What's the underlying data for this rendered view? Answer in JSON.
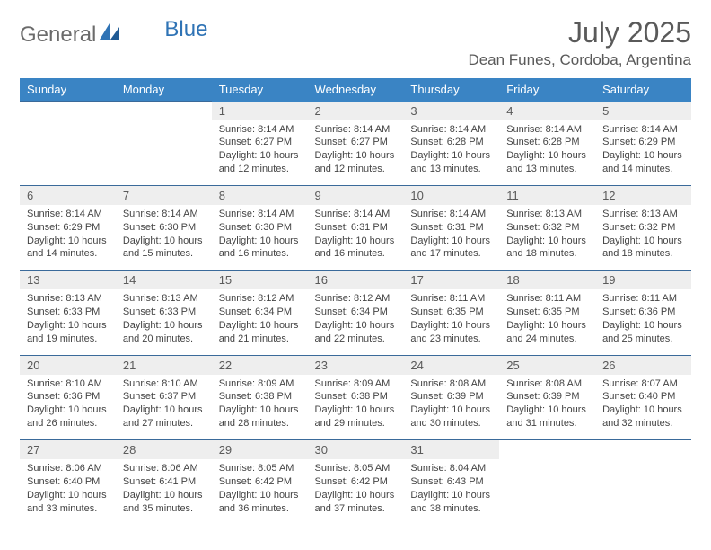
{
  "brand": {
    "name_part1": "General",
    "name_part2": "Blue"
  },
  "title": "July 2025",
  "location": "Dean Funes, Cordoba, Argentina",
  "colors": {
    "header_bg": "#3a84c4",
    "header_text": "#ffffff",
    "daynum_bg": "#eeeeee",
    "rule": "#3a6a9a",
    "text": "#444444",
    "title_text": "#5a5a5a",
    "logo_gray": "#6b6b6b",
    "logo_blue": "#2f73b5"
  },
  "day_headers": [
    "Sunday",
    "Monday",
    "Tuesday",
    "Wednesday",
    "Thursday",
    "Friday",
    "Saturday"
  ],
  "weeks": [
    [
      null,
      null,
      {
        "n": "1",
        "sr": "8:14 AM",
        "ss": "6:27 PM",
        "dl": "10 hours and 12 minutes."
      },
      {
        "n": "2",
        "sr": "8:14 AM",
        "ss": "6:27 PM",
        "dl": "10 hours and 12 minutes."
      },
      {
        "n": "3",
        "sr": "8:14 AM",
        "ss": "6:28 PM",
        "dl": "10 hours and 13 minutes."
      },
      {
        "n": "4",
        "sr": "8:14 AM",
        "ss": "6:28 PM",
        "dl": "10 hours and 13 minutes."
      },
      {
        "n": "5",
        "sr": "8:14 AM",
        "ss": "6:29 PM",
        "dl": "10 hours and 14 minutes."
      }
    ],
    [
      {
        "n": "6",
        "sr": "8:14 AM",
        "ss": "6:29 PM",
        "dl": "10 hours and 14 minutes."
      },
      {
        "n": "7",
        "sr": "8:14 AM",
        "ss": "6:30 PM",
        "dl": "10 hours and 15 minutes."
      },
      {
        "n": "8",
        "sr": "8:14 AM",
        "ss": "6:30 PM",
        "dl": "10 hours and 16 minutes."
      },
      {
        "n": "9",
        "sr": "8:14 AM",
        "ss": "6:31 PM",
        "dl": "10 hours and 16 minutes."
      },
      {
        "n": "10",
        "sr": "8:14 AM",
        "ss": "6:31 PM",
        "dl": "10 hours and 17 minutes."
      },
      {
        "n": "11",
        "sr": "8:13 AM",
        "ss": "6:32 PM",
        "dl": "10 hours and 18 minutes."
      },
      {
        "n": "12",
        "sr": "8:13 AM",
        "ss": "6:32 PM",
        "dl": "10 hours and 18 minutes."
      }
    ],
    [
      {
        "n": "13",
        "sr": "8:13 AM",
        "ss": "6:33 PM",
        "dl": "10 hours and 19 minutes."
      },
      {
        "n": "14",
        "sr": "8:13 AM",
        "ss": "6:33 PM",
        "dl": "10 hours and 20 minutes."
      },
      {
        "n": "15",
        "sr": "8:12 AM",
        "ss": "6:34 PM",
        "dl": "10 hours and 21 minutes."
      },
      {
        "n": "16",
        "sr": "8:12 AM",
        "ss": "6:34 PM",
        "dl": "10 hours and 22 minutes."
      },
      {
        "n": "17",
        "sr": "8:11 AM",
        "ss": "6:35 PM",
        "dl": "10 hours and 23 minutes."
      },
      {
        "n": "18",
        "sr": "8:11 AM",
        "ss": "6:35 PM",
        "dl": "10 hours and 24 minutes."
      },
      {
        "n": "19",
        "sr": "8:11 AM",
        "ss": "6:36 PM",
        "dl": "10 hours and 25 minutes."
      }
    ],
    [
      {
        "n": "20",
        "sr": "8:10 AM",
        "ss": "6:36 PM",
        "dl": "10 hours and 26 minutes."
      },
      {
        "n": "21",
        "sr": "8:10 AM",
        "ss": "6:37 PM",
        "dl": "10 hours and 27 minutes."
      },
      {
        "n": "22",
        "sr": "8:09 AM",
        "ss": "6:38 PM",
        "dl": "10 hours and 28 minutes."
      },
      {
        "n": "23",
        "sr": "8:09 AM",
        "ss": "6:38 PM",
        "dl": "10 hours and 29 minutes."
      },
      {
        "n": "24",
        "sr": "8:08 AM",
        "ss": "6:39 PM",
        "dl": "10 hours and 30 minutes."
      },
      {
        "n": "25",
        "sr": "8:08 AM",
        "ss": "6:39 PM",
        "dl": "10 hours and 31 minutes."
      },
      {
        "n": "26",
        "sr": "8:07 AM",
        "ss": "6:40 PM",
        "dl": "10 hours and 32 minutes."
      }
    ],
    [
      {
        "n": "27",
        "sr": "8:06 AM",
        "ss": "6:40 PM",
        "dl": "10 hours and 33 minutes."
      },
      {
        "n": "28",
        "sr": "8:06 AM",
        "ss": "6:41 PM",
        "dl": "10 hours and 35 minutes."
      },
      {
        "n": "29",
        "sr": "8:05 AM",
        "ss": "6:42 PM",
        "dl": "10 hours and 36 minutes."
      },
      {
        "n": "30",
        "sr": "8:05 AM",
        "ss": "6:42 PM",
        "dl": "10 hours and 37 minutes."
      },
      {
        "n": "31",
        "sr": "8:04 AM",
        "ss": "6:43 PM",
        "dl": "10 hours and 38 minutes."
      },
      null,
      null
    ]
  ],
  "labels": {
    "sunrise": "Sunrise:",
    "sunset": "Sunset:",
    "daylight": "Daylight:"
  }
}
